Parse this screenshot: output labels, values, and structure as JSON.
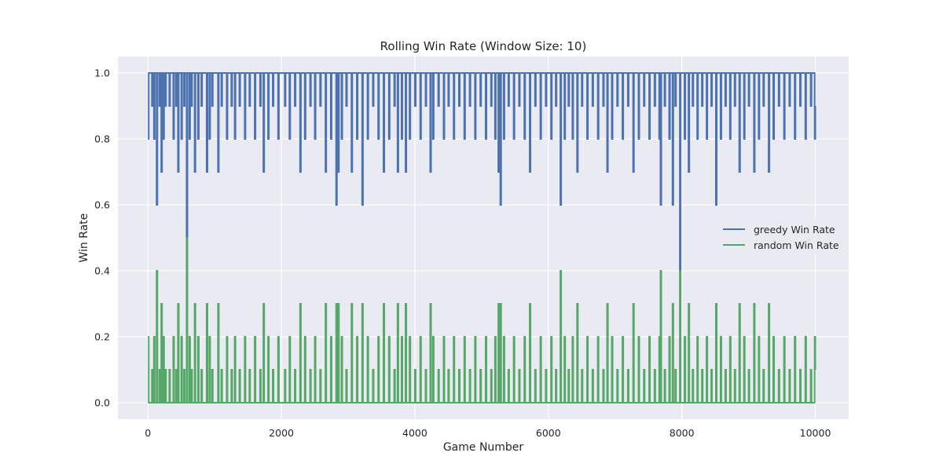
{
  "chart_data": {
    "type": "line",
    "title": "Rolling Win Rate (Window Size: 10)",
    "xlabel": "Game Number",
    "ylabel": "Win Rate",
    "xlim": [
      -450,
      10500
    ],
    "ylim": [
      -0.05,
      1.05
    ],
    "x_ticks": [
      0,
      2000,
      4000,
      6000,
      8000,
      10000
    ],
    "x_tick_labels": [
      "0",
      "2000",
      "4000",
      "6000",
      "8000",
      "10000"
    ],
    "y_ticks": [
      0.0,
      0.2,
      0.4,
      0.6,
      0.8,
      1.0
    ],
    "y_tick_labels": [
      "0.0",
      "0.2",
      "0.4",
      "0.6",
      "0.8",
      "1.0"
    ],
    "grid": true,
    "legend_position": "center-right",
    "x_range": [
      0,
      10000
    ],
    "series": [
      {
        "name": "greedy Win Rate",
        "color": "#4c72b0",
        "baseline": 1.0,
        "dips": [
          [
            0,
            0.8
          ],
          [
            60,
            0.9
          ],
          [
            90,
            0.8
          ],
          [
            130,
            0.6
          ],
          [
            170,
            0.9
          ],
          [
            200,
            0.7
          ],
          [
            230,
            0.8
          ],
          [
            260,
            0.9
          ],
          [
            320,
            0.9
          ],
          [
            380,
            0.8
          ],
          [
            420,
            0.9
          ],
          [
            450,
            0.7
          ],
          [
            500,
            0.8
          ],
          [
            540,
            0.9
          ],
          [
            580,
            0.5
          ],
          [
            620,
            0.8
          ],
          [
            650,
            0.9
          ],
          [
            700,
            0.7
          ],
          [
            750,
            0.8
          ],
          [
            800,
            0.9
          ],
          [
            880,
            0.7
          ],
          [
            920,
            0.8
          ],
          [
            960,
            0.9
          ],
          [
            1050,
            0.7
          ],
          [
            1100,
            0.9
          ],
          [
            1180,
            0.8
          ],
          [
            1250,
            0.9
          ],
          [
            1300,
            0.8
          ],
          [
            1370,
            0.9
          ],
          [
            1450,
            0.8
          ],
          [
            1520,
            0.9
          ],
          [
            1600,
            0.8
          ],
          [
            1680,
            0.9
          ],
          [
            1730,
            0.7
          ],
          [
            1800,
            0.8
          ],
          [
            1870,
            0.9
          ],
          [
            1950,
            0.8
          ],
          [
            2050,
            0.9
          ],
          [
            2120,
            0.8
          ],
          [
            2200,
            0.9
          ],
          [
            2280,
            0.7
          ],
          [
            2350,
            0.8
          ],
          [
            2430,
            0.9
          ],
          [
            2500,
            0.8
          ],
          [
            2580,
            0.9
          ],
          [
            2660,
            0.7
          ],
          [
            2740,
            0.8
          ],
          [
            2820,
            0.6
          ],
          [
            2850,
            0.7
          ],
          [
            2900,
            0.8
          ],
          [
            2970,
            0.9
          ],
          [
            3050,
            0.7
          ],
          [
            3130,
            0.8
          ],
          [
            3210,
            0.6
          ],
          [
            3290,
            0.8
          ],
          [
            3370,
            0.9
          ],
          [
            3450,
            0.8
          ],
          [
            3530,
            0.7
          ],
          [
            3610,
            0.8
          ],
          [
            3690,
            0.9
          ],
          [
            3740,
            0.7
          ],
          [
            3800,
            0.8
          ],
          [
            3860,
            0.7
          ],
          [
            3920,
            0.8
          ],
          [
            4000,
            0.9
          ],
          [
            4080,
            0.8
          ],
          [
            4160,
            0.9
          ],
          [
            4230,
            0.7
          ],
          [
            4270,
            0.8
          ],
          [
            4350,
            0.9
          ],
          [
            4430,
            0.8
          ],
          [
            4500,
            0.9
          ],
          [
            4580,
            0.8
          ],
          [
            4660,
            0.9
          ],
          [
            4740,
            0.8
          ],
          [
            4820,
            0.9
          ],
          [
            4900,
            0.8
          ],
          [
            4980,
            0.9
          ],
          [
            5060,
            0.8
          ],
          [
            5140,
            0.9
          ],
          [
            5200,
            0.8
          ],
          [
            5250,
            0.7
          ],
          [
            5280,
            0.6
          ],
          [
            5330,
            0.8
          ],
          [
            5400,
            0.9
          ],
          [
            5480,
            0.8
          ],
          [
            5560,
            0.9
          ],
          [
            5640,
            0.8
          ],
          [
            5720,
            0.7
          ],
          [
            5800,
            0.9
          ],
          [
            5880,
            0.8
          ],
          [
            5960,
            0.9
          ],
          [
            6040,
            0.8
          ],
          [
            6110,
            0.9
          ],
          [
            6180,
            0.6
          ],
          [
            6240,
            0.8
          ],
          [
            6300,
            0.9
          ],
          [
            6360,
            0.8
          ],
          [
            6430,
            0.7
          ],
          [
            6500,
            0.9
          ],
          [
            6580,
            0.8
          ],
          [
            6660,
            0.9
          ],
          [
            6740,
            0.8
          ],
          [
            6820,
            0.9
          ],
          [
            6880,
            0.7
          ],
          [
            6950,
            0.8
          ],
          [
            7030,
            0.9
          ],
          [
            7110,
            0.8
          ],
          [
            7190,
            0.9
          ],
          [
            7270,
            0.7
          ],
          [
            7350,
            0.8
          ],
          [
            7430,
            0.9
          ],
          [
            7510,
            0.8
          ],
          [
            7590,
            0.9
          ],
          [
            7660,
            0.8
          ],
          [
            7680,
            0.6
          ],
          [
            7740,
            0.9
          ],
          [
            7810,
            0.8
          ],
          [
            7860,
            0.6
          ],
          [
            7900,
            0.9
          ],
          [
            7970,
            0.4
          ],
          [
            8040,
            0.8
          ],
          [
            8100,
            0.7
          ],
          [
            8160,
            0.9
          ],
          [
            8230,
            0.8
          ],
          [
            8300,
            0.9
          ],
          [
            8370,
            0.8
          ],
          [
            8440,
            0.9
          ],
          [
            8510,
            0.6
          ],
          [
            8580,
            0.8
          ],
          [
            8650,
            0.9
          ],
          [
            8720,
            0.8
          ],
          [
            8790,
            0.9
          ],
          [
            8860,
            0.7
          ],
          [
            8930,
            0.8
          ],
          [
            9000,
            0.9
          ],
          [
            9080,
            0.7
          ],
          [
            9150,
            0.8
          ],
          [
            9220,
            0.9
          ],
          [
            9300,
            0.7
          ],
          [
            9370,
            0.8
          ],
          [
            9450,
            0.9
          ],
          [
            9530,
            0.8
          ],
          [
            9610,
            0.9
          ],
          [
            9690,
            0.8
          ],
          [
            9770,
            0.9
          ],
          [
            9850,
            0.8
          ],
          [
            9930,
            0.9
          ],
          [
            9990,
            0.8
          ],
          [
            10000,
            0.9
          ]
        ]
      },
      {
        "name": "random Win Rate",
        "color": "#55a868",
        "baseline": 0.0,
        "dips": [
          [
            0,
            0.2
          ],
          [
            60,
            0.1
          ],
          [
            90,
            0.2
          ],
          [
            130,
            0.4
          ],
          [
            170,
            0.1
          ],
          [
            200,
            0.3
          ],
          [
            230,
            0.2
          ],
          [
            260,
            0.1
          ],
          [
            320,
            0.1
          ],
          [
            380,
            0.2
          ],
          [
            420,
            0.1
          ],
          [
            450,
            0.3
          ],
          [
            500,
            0.2
          ],
          [
            540,
            0.1
          ],
          [
            580,
            0.5
          ],
          [
            620,
            0.2
          ],
          [
            650,
            0.1
          ],
          [
            700,
            0.3
          ],
          [
            750,
            0.2
          ],
          [
            800,
            0.1
          ],
          [
            880,
            0.3
          ],
          [
            920,
            0.2
          ],
          [
            960,
            0.1
          ],
          [
            1050,
            0.3
          ],
          [
            1100,
            0.1
          ],
          [
            1180,
            0.2
          ],
          [
            1250,
            0.1
          ],
          [
            1300,
            0.2
          ],
          [
            1370,
            0.1
          ],
          [
            1450,
            0.2
          ],
          [
            1520,
            0.1
          ],
          [
            1600,
            0.2
          ],
          [
            1680,
            0.1
          ],
          [
            1730,
            0.3
          ],
          [
            1800,
            0.2
          ],
          [
            1870,
            0.1
          ],
          [
            1950,
            0.2
          ],
          [
            2050,
            0.1
          ],
          [
            2120,
            0.2
          ],
          [
            2200,
            0.1
          ],
          [
            2280,
            0.3
          ],
          [
            2350,
            0.2
          ],
          [
            2430,
            0.1
          ],
          [
            2500,
            0.2
          ],
          [
            2580,
            0.1
          ],
          [
            2660,
            0.3
          ],
          [
            2740,
            0.2
          ],
          [
            2820,
            0.3
          ],
          [
            2850,
            0.3
          ],
          [
            2900,
            0.2
          ],
          [
            2970,
            0.1
          ],
          [
            3050,
            0.3
          ],
          [
            3130,
            0.2
          ],
          [
            3210,
            0.3
          ],
          [
            3290,
            0.2
          ],
          [
            3370,
            0.1
          ],
          [
            3450,
            0.2
          ],
          [
            3530,
            0.3
          ],
          [
            3610,
            0.2
          ],
          [
            3690,
            0.1
          ],
          [
            3740,
            0.3
          ],
          [
            3800,
            0.2
          ],
          [
            3860,
            0.3
          ],
          [
            3920,
            0.2
          ],
          [
            4000,
            0.1
          ],
          [
            4080,
            0.2
          ],
          [
            4160,
            0.1
          ],
          [
            4230,
            0.3
          ],
          [
            4270,
            0.2
          ],
          [
            4350,
            0.1
          ],
          [
            4430,
            0.2
          ],
          [
            4500,
            0.1
          ],
          [
            4580,
            0.2
          ],
          [
            4660,
            0.1
          ],
          [
            4740,
            0.2
          ],
          [
            4820,
            0.1
          ],
          [
            4900,
            0.2
          ],
          [
            4980,
            0.1
          ],
          [
            5060,
            0.2
          ],
          [
            5140,
            0.1
          ],
          [
            5200,
            0.2
          ],
          [
            5250,
            0.3
          ],
          [
            5280,
            0.3
          ],
          [
            5330,
            0.2
          ],
          [
            5400,
            0.1
          ],
          [
            5480,
            0.2
          ],
          [
            5560,
            0.1
          ],
          [
            5640,
            0.2
          ],
          [
            5720,
            0.3
          ],
          [
            5800,
            0.1
          ],
          [
            5880,
            0.2
          ],
          [
            5960,
            0.1
          ],
          [
            6040,
            0.2
          ],
          [
            6110,
            0.1
          ],
          [
            6180,
            0.4
          ],
          [
            6240,
            0.2
          ],
          [
            6300,
            0.1
          ],
          [
            6360,
            0.2
          ],
          [
            6430,
            0.3
          ],
          [
            6500,
            0.1
          ],
          [
            6580,
            0.2
          ],
          [
            6660,
            0.1
          ],
          [
            6740,
            0.2
          ],
          [
            6820,
            0.1
          ],
          [
            6880,
            0.3
          ],
          [
            6950,
            0.2
          ],
          [
            7030,
            0.1
          ],
          [
            7110,
            0.2
          ],
          [
            7190,
            0.1
          ],
          [
            7270,
            0.3
          ],
          [
            7350,
            0.2
          ],
          [
            7430,
            0.1
          ],
          [
            7510,
            0.2
          ],
          [
            7590,
            0.1
          ],
          [
            7660,
            0.2
          ],
          [
            7680,
            0.4
          ],
          [
            7740,
            0.1
          ],
          [
            7810,
            0.2
          ],
          [
            7860,
            0.3
          ],
          [
            7900,
            0.1
          ],
          [
            7970,
            0.4
          ],
          [
            8040,
            0.2
          ],
          [
            8100,
            0.3
          ],
          [
            8160,
            0.1
          ],
          [
            8230,
            0.2
          ],
          [
            8300,
            0.1
          ],
          [
            8370,
            0.2
          ],
          [
            8440,
            0.1
          ],
          [
            8510,
            0.3
          ],
          [
            8580,
            0.2
          ],
          [
            8650,
            0.1
          ],
          [
            8720,
            0.2
          ],
          [
            8790,
            0.1
          ],
          [
            8860,
            0.3
          ],
          [
            8930,
            0.2
          ],
          [
            9000,
            0.1
          ],
          [
            9080,
            0.3
          ],
          [
            9150,
            0.2
          ],
          [
            9220,
            0.1
          ],
          [
            9300,
            0.3
          ],
          [
            9370,
            0.2
          ],
          [
            9450,
            0.1
          ],
          [
            9530,
            0.2
          ],
          [
            9610,
            0.1
          ],
          [
            9690,
            0.2
          ],
          [
            9770,
            0.1
          ],
          [
            9850,
            0.2
          ],
          [
            9930,
            0.1
          ],
          [
            9990,
            0.2
          ],
          [
            10000,
            0.1
          ]
        ]
      }
    ]
  }
}
